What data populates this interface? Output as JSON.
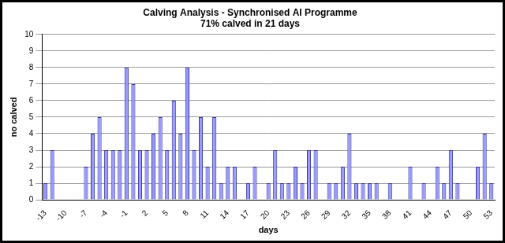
{
  "chart_data": {
    "type": "bar",
    "title": "Calving Analysis - Synchronised AI Programme",
    "subtitle": "71% calved in 21 days",
    "x_label": "days",
    "y_label": "no calved",
    "categories": [
      "-13",
      null,
      null,
      "-10",
      null,
      null,
      "-7",
      null,
      null,
      "-4",
      null,
      null,
      "-1",
      null,
      null,
      "2",
      null,
      null,
      "5",
      null,
      null,
      "8",
      null,
      null,
      "11",
      null,
      null,
      "14",
      null,
      null,
      "17",
      null,
      null,
      "20",
      null,
      null,
      "23",
      null,
      null,
      "26",
      null,
      null,
      "29",
      null,
      null,
      "32",
      null,
      null,
      "35",
      null,
      null,
      "38",
      null,
      null,
      "41",
      null,
      null,
      "44",
      null,
      null,
      "47",
      null,
      null,
      "50",
      null,
      null,
      "53"
    ],
    "values": [
      1,
      3,
      0,
      0,
      0,
      0,
      2,
      4,
      5,
      3,
      3,
      3,
      8,
      7,
      3,
      3,
      4,
      5,
      3,
      6,
      4,
      8,
      3,
      5,
      2,
      5,
      1,
      2,
      2,
      0,
      1,
      2,
      0,
      1,
      3,
      1,
      1,
      2,
      1,
      3,
      3,
      0,
      1,
      1,
      2,
      4,
      1,
      1,
      1,
      1,
      0,
      1,
      0,
      0,
      2,
      0,
      1,
      0,
      2,
      1,
      3,
      1,
      0,
      0,
      2,
      4,
      1
    ],
    "color": "#9999ff",
    "ylim": [
      0,
      10
    ],
    "yticks": [
      0,
      1,
      2,
      3,
      4,
      5,
      6,
      7,
      8,
      9,
      10
    ],
    "grid": true
  }
}
